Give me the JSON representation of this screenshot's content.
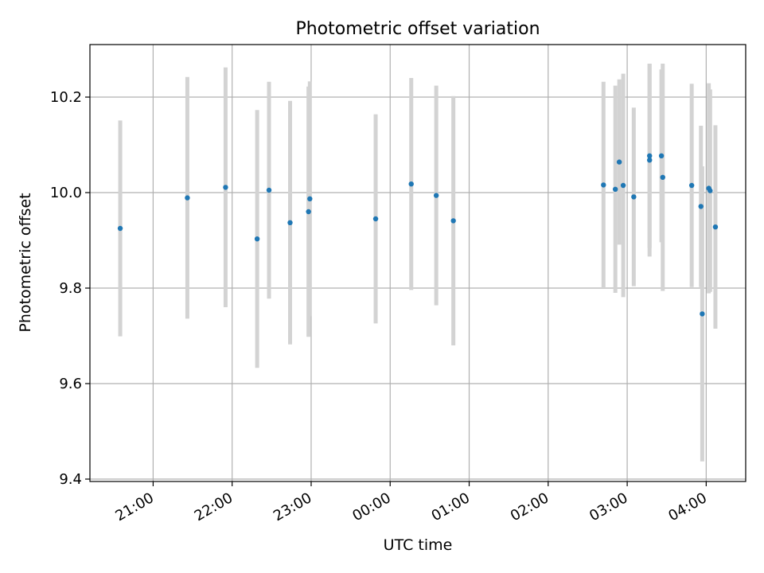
{
  "chart_data": {
    "type": "scatter",
    "title": "Photometric offset variation",
    "xlabel": "UTC time",
    "ylabel": "Photometric offset",
    "x_tick_labels": [
      "21:00",
      "22:00",
      "23:00",
      "00:00",
      "01:00",
      "02:00",
      "03:00",
      "04:00"
    ],
    "x_tick_hours": [
      21,
      22,
      23,
      24,
      25,
      26,
      27,
      28
    ],
    "xlim_hours": [
      20.2,
      28.5
    ],
    "y_tick_labels": [
      "9.4",
      "9.6",
      "9.8",
      "10.0",
      "10.2"
    ],
    "y_ticks": [
      9.4,
      9.6,
      9.8,
      10.0,
      10.2
    ],
    "ylim": [
      9.395,
      10.31
    ],
    "grid": true,
    "point_color": "#1f77b4",
    "errorbar_color": "#d3d3d3",
    "points": [
      {
        "time": "20:35",
        "offset": 9.925,
        "err": 0.226
      },
      {
        "time": "21:26",
        "offset": 9.989,
        "err": 0.253
      },
      {
        "time": "21:55",
        "offset": 10.011,
        "err": 0.251
      },
      {
        "time": "22:19",
        "offset": 9.903,
        "err": 0.27
      },
      {
        "time": "22:28",
        "offset": 10.005,
        "err": 0.227
      },
      {
        "time": "22:44",
        "offset": 9.937,
        "err": 0.255
      },
      {
        "time": "22:58",
        "offset": 9.96,
        "err": 0.262
      },
      {
        "time": "22:59",
        "offset": 9.987,
        "err": 0.246
      },
      {
        "time": "23:49",
        "offset": 9.945,
        "err": 0.219
      },
      {
        "time": "00:16",
        "offset": 10.018,
        "err": 0.222
      },
      {
        "time": "00:35",
        "offset": 9.994,
        "err": 0.23
      },
      {
        "time": "00:48",
        "offset": 9.941,
        "err": 0.261
      },
      {
        "time": "02:42",
        "offset": 10.016,
        "err": 0.216
      },
      {
        "time": "02:51",
        "offset": 10.007,
        "err": 0.217
      },
      {
        "time": "02:54",
        "offset": 10.064,
        "err": 0.173
      },
      {
        "time": "02:57",
        "offset": 10.015,
        "err": 0.234
      },
      {
        "time": "03:05",
        "offset": 9.991,
        "err": 0.187
      },
      {
        "time": "03:17",
        "offset": 10.068,
        "err": 0.202
      },
      {
        "time": "03:17",
        "offset": 10.077,
        "err": 0.193
      },
      {
        "time": "03:26",
        "offset": 10.077,
        "err": 0.181
      },
      {
        "time": "03:27",
        "offset": 10.032,
        "err": 0.238
      },
      {
        "time": "03:49",
        "offset": 10.015,
        "err": 0.213
      },
      {
        "time": "03:56",
        "offset": 9.971,
        "err": 0.169
      },
      {
        "time": "03:57",
        "offset": 9.746,
        "err": 0.309
      },
      {
        "time": "04:02",
        "offset": 10.009,
        "err": 0.22
      },
      {
        "time": "04:03",
        "offset": 10.004,
        "err": 0.212
      },
      {
        "time": "04:07",
        "offset": 9.928,
        "err": 0.213
      }
    ]
  }
}
